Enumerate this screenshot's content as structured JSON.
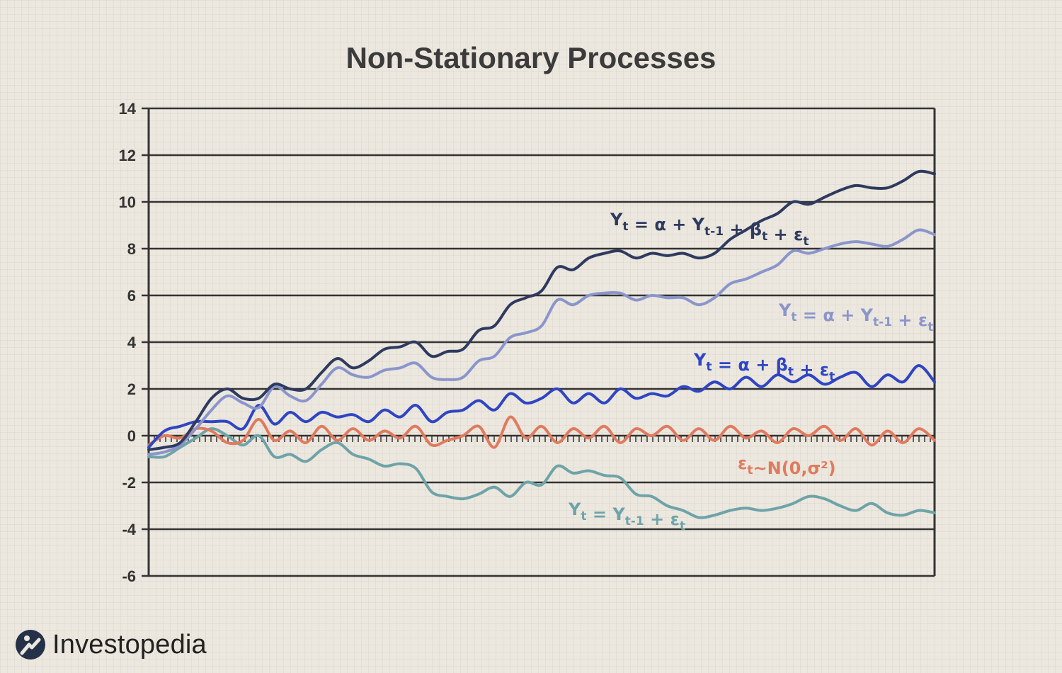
{
  "brand": {
    "name": "Investopedia"
  },
  "chart_data": {
    "type": "line",
    "title": "Non-Stationary Processes",
    "xlabel": "",
    "ylabel": "",
    "ylim": [
      -6,
      14
    ],
    "yticks": [
      14,
      12,
      10,
      8,
      6,
      4,
      2,
      0,
      -2,
      -4,
      -6
    ],
    "ytick_labels": [
      "14",
      "12",
      "10",
      "8",
      "6",
      "4",
      "2",
      "0",
      "-2",
      "-4",
      "-6"
    ],
    "xlim": [
      0,
      100
    ],
    "grid": "horizontal",
    "series": [
      {
        "name": "Yt = α + Yt-1 + βt + εt",
        "color": "#2e3a5f",
        "label_parts": {
          "a": "Y",
          "as": "t",
          "b": " = α + Y",
          "bs": "t-1",
          "c": " + β",
          "cs": "t",
          "d": " + ε",
          "ds": "t"
        },
        "x": [
          0,
          2,
          4,
          6,
          8,
          10,
          12,
          14,
          16,
          18,
          20,
          22,
          24,
          26,
          28,
          30,
          32,
          34,
          36,
          38,
          40,
          42,
          44,
          46,
          48,
          50,
          52,
          54,
          56,
          58,
          60,
          62,
          64,
          66,
          68,
          70,
          72,
          74,
          76,
          78,
          80,
          82,
          84,
          86,
          88,
          90,
          92,
          94,
          96,
          98,
          100
        ],
        "values": [
          -0.6,
          -0.5,
          -0.3,
          0.6,
          1.6,
          2.0,
          1.6,
          1.6,
          2.2,
          2.0,
          2.0,
          2.7,
          3.3,
          2.9,
          3.2,
          3.7,
          3.8,
          4.0,
          3.4,
          3.6,
          3.7,
          4.5,
          4.7,
          5.6,
          5.9,
          6.2,
          7.2,
          7.1,
          7.6,
          7.8,
          7.9,
          7.6,
          7.8,
          7.7,
          7.8,
          7.6,
          7.8,
          8.4,
          8.8,
          9.2,
          9.5,
          10.0,
          9.9,
          10.2,
          10.5,
          10.7,
          10.6,
          10.6,
          10.9,
          11.3,
          11.2
        ]
      },
      {
        "name": "Yt = α + Yt-1 + εt",
        "color": "#8a95cc",
        "label_parts": {
          "a": "Y",
          "as": "t",
          "b": " = α + Y",
          "bs": "t-1",
          "c": " + ε",
          "cs": "t",
          "d": "",
          "ds": ""
        },
        "x": [
          0,
          2,
          4,
          6,
          8,
          10,
          12,
          14,
          16,
          18,
          20,
          22,
          24,
          26,
          28,
          30,
          32,
          34,
          36,
          38,
          40,
          42,
          44,
          46,
          48,
          50,
          52,
          54,
          56,
          58,
          60,
          62,
          64,
          66,
          68,
          70,
          72,
          74,
          76,
          78,
          80,
          82,
          84,
          86,
          88,
          90,
          92,
          94,
          96,
          98,
          100
        ],
        "values": [
          -0.8,
          -0.7,
          -0.4,
          0.3,
          1.1,
          1.7,
          1.4,
          1.2,
          2.1,
          1.7,
          1.5,
          2.2,
          2.9,
          2.6,
          2.5,
          2.8,
          2.9,
          3.1,
          2.5,
          2.4,
          2.5,
          3.2,
          3.4,
          4.2,
          4.4,
          4.7,
          5.8,
          5.6,
          6.0,
          6.1,
          6.1,
          5.8,
          6.0,
          5.9,
          5.9,
          5.6,
          5.9,
          6.5,
          6.7,
          7.0,
          7.3,
          7.9,
          7.8,
          8.0,
          8.2,
          8.3,
          8.2,
          8.1,
          8.4,
          8.8,
          8.6
        ]
      },
      {
        "name": "Yt = α + βt + εt",
        "color": "#2f45c4",
        "label_parts": {
          "a": "Y",
          "as": "t",
          "b": " = α + β",
          "bs": "t",
          "c": " + ε",
          "cs": "t",
          "d": "",
          "ds": ""
        },
        "x": [
          0,
          2,
          4,
          6,
          8,
          10,
          12,
          14,
          16,
          18,
          20,
          22,
          24,
          26,
          28,
          30,
          32,
          34,
          36,
          38,
          40,
          42,
          44,
          46,
          48,
          50,
          52,
          54,
          56,
          58,
          60,
          62,
          64,
          66,
          68,
          70,
          72,
          74,
          76,
          78,
          80,
          82,
          84,
          86,
          88,
          90,
          92,
          94,
          96,
          98,
          100
        ],
        "values": [
          -0.5,
          0.2,
          0.4,
          0.6,
          0.6,
          0.6,
          0.3,
          1.3,
          0.5,
          1.0,
          0.6,
          1.0,
          0.8,
          0.9,
          0.6,
          1.1,
          0.8,
          1.3,
          0.6,
          1.0,
          1.1,
          1.5,
          1.1,
          1.8,
          1.4,
          1.6,
          2.0,
          1.4,
          1.8,
          1.4,
          2.0,
          1.6,
          1.8,
          1.7,
          2.1,
          1.9,
          2.3,
          2.0,
          2.5,
          2.1,
          2.6,
          2.3,
          2.6,
          2.2,
          2.5,
          2.7,
          2.1,
          2.6,
          2.3,
          3.0,
          2.3
        ]
      },
      {
        "name": "εt~N(0,σ²)",
        "color": "#e07a5f",
        "label_parts": {
          "a": "ε",
          "as": "t",
          "b": "~N(0,σ²)",
          "bs": "",
          "c": "",
          "cs": "",
          "d": "",
          "ds": ""
        },
        "x": [
          0,
          2,
          4,
          6,
          8,
          10,
          12,
          14,
          16,
          18,
          20,
          22,
          24,
          26,
          28,
          30,
          32,
          34,
          36,
          38,
          40,
          42,
          44,
          46,
          48,
          50,
          52,
          54,
          56,
          58,
          60,
          62,
          64,
          66,
          68,
          70,
          72,
          74,
          76,
          78,
          80,
          82,
          84,
          86,
          88,
          90,
          92,
          94,
          96,
          98,
          100
        ],
        "values": [
          -0.4,
          0.0,
          -0.1,
          0.3,
          0.2,
          -0.3,
          -0.2,
          0.7,
          -0.2,
          0.2,
          -0.3,
          0.4,
          -0.2,
          0.3,
          -0.2,
          0.2,
          -0.1,
          0.4,
          -0.4,
          -0.2,
          0.0,
          0.4,
          -0.5,
          0.8,
          -0.1,
          0.4,
          -0.3,
          0.3,
          -0.1,
          0.4,
          -0.3,
          0.3,
          0.0,
          0.4,
          -0.2,
          0.3,
          -0.2,
          0.4,
          -0.1,
          0.2,
          -0.3,
          0.3,
          0.0,
          0.4,
          -0.2,
          0.3,
          -0.4,
          0.2,
          -0.3,
          0.3,
          -0.2
        ]
      },
      {
        "name": "Yt = Yt-1 + εt",
        "color": "#6ea3a8",
        "label_parts": {
          "a": "Y",
          "as": "t",
          "b": " = Y",
          "bs": "t-1",
          "c": " + ε",
          "cs": "t",
          "d": "",
          "ds": ""
        },
        "x": [
          0,
          2,
          4,
          6,
          8,
          10,
          12,
          14,
          16,
          18,
          20,
          22,
          24,
          26,
          28,
          30,
          32,
          34,
          36,
          38,
          40,
          42,
          44,
          46,
          48,
          50,
          52,
          54,
          56,
          58,
          60,
          62,
          64,
          66,
          68,
          70,
          72,
          74,
          76,
          78,
          80,
          82,
          84,
          86,
          88,
          90,
          92,
          94,
          96,
          98,
          100
        ],
        "values": [
          -0.9,
          -0.9,
          -0.5,
          -0.1,
          0.3,
          0.0,
          -0.4,
          0.0,
          -0.9,
          -0.8,
          -1.1,
          -0.6,
          -0.3,
          -0.8,
          -1.0,
          -1.3,
          -1.2,
          -1.4,
          -2.4,
          -2.6,
          -2.7,
          -2.5,
          -2.2,
          -2.6,
          -2.0,
          -2.1,
          -1.3,
          -1.6,
          -1.5,
          -1.7,
          -1.8,
          -2.5,
          -2.6,
          -3.0,
          -3.2,
          -3.5,
          -3.4,
          -3.2,
          -3.1,
          -3.2,
          -3.1,
          -2.9,
          -2.6,
          -2.7,
          -3.0,
          -3.2,
          -2.9,
          -3.3,
          -3.4,
          -3.2,
          -3.3
        ]
      }
    ]
  }
}
